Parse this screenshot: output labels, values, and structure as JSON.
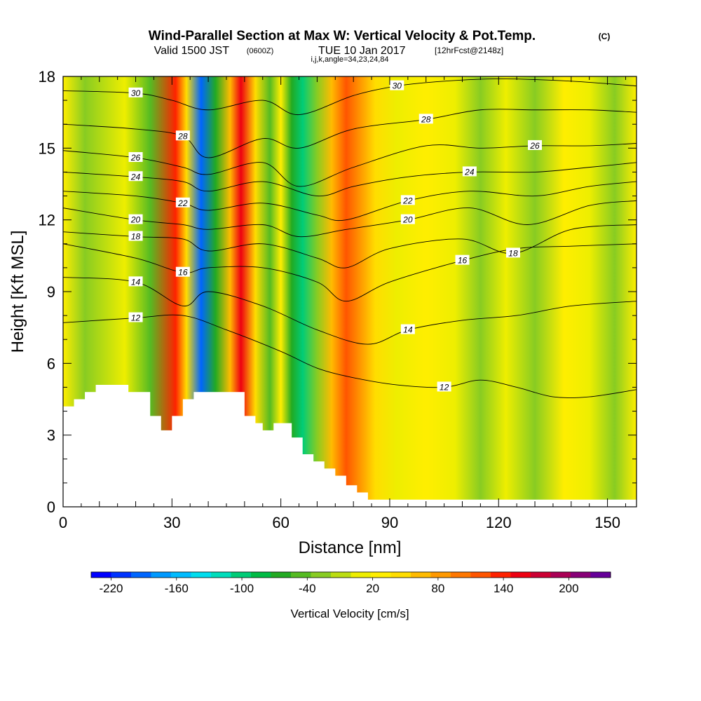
{
  "header": {
    "title_main": "Wind-Parallel Section at Max W: Vertical Velocity & Pot.Temp.",
    "title_mark": "(C)",
    "valid_a": "Valid 1500 JST",
    "valid_b": "(0600Z)",
    "valid_c": "TUE 10 Jan 2017",
    "valid_d": "[12hrFcst@2148z]",
    "indices": "i,j,k,angle=34,23,24,84"
  },
  "chart_data": {
    "type": "heatmap",
    "xlabel": "Distance [nm]",
    "ylabel": "Height [Kft MSL]",
    "xlim": [
      0,
      158
    ],
    "ylim": [
      0,
      18
    ],
    "x_ticks": [
      0,
      30,
      60,
      90,
      120,
      150
    ],
    "y_ticks": [
      0,
      3,
      6,
      9,
      12,
      15,
      18
    ],
    "x_tick_labels": [
      "0",
      "30",
      "60",
      "90",
      "120",
      "150"
    ],
    "y_tick_labels": [
      "0",
      "3",
      "6",
      "9",
      "12",
      "15",
      "18"
    ],
    "colorbar": {
      "label": "Vertical Velocity [cm/s]",
      "range": [
        -240,
        240
      ],
      "step": 20,
      "tick_labels": [
        "-220",
        "-160",
        "-100",
        "-40",
        "20",
        "80",
        "140",
        "200"
      ],
      "colors": [
        "#0000ff",
        "#0033ff",
        "#0066ff",
        "#0099ff",
        "#00bbff",
        "#00ddee",
        "#00ddbb",
        "#00cc77",
        "#00bb44",
        "#22aa22",
        "#55bb22",
        "#88cc22",
        "#bbdd11",
        "#eeee00",
        "#ffee00",
        "#ffdd00",
        "#ffbb00",
        "#ff9900",
        "#ff7700",
        "#ff5500",
        "#ff2200",
        "#ee0011",
        "#cc0033",
        "#aa0055",
        "#880077",
        "#660099"
      ]
    },
    "vertical_velocity_bands": [
      {
        "x": 0,
        "w": 20
      },
      {
        "x": 6,
        "w": -20
      },
      {
        "x": 17,
        "w": 0
      },
      {
        "x": 24,
        "w": -40
      },
      {
        "x": 31,
        "w": 140
      },
      {
        "x": 34,
        "w": 40
      },
      {
        "x": 38,
        "w": -200
      },
      {
        "x": 42,
        "w": -60
      },
      {
        "x": 46,
        "w": 60
      },
      {
        "x": 49,
        "w": 160
      },
      {
        "x": 53,
        "w": 40
      },
      {
        "x": 57,
        "w": -40
      },
      {
        "x": 60,
        "w": 20
      },
      {
        "x": 63,
        "w": -60
      },
      {
        "x": 66,
        "w": -100
      },
      {
        "x": 70,
        "w": -20
      },
      {
        "x": 74,
        "w": 60
      },
      {
        "x": 78,
        "w": 120
      },
      {
        "x": 82,
        "w": 80
      },
      {
        "x": 86,
        "w": 40
      },
      {
        "x": 92,
        "w": 0
      },
      {
        "x": 100,
        "w": 20
      },
      {
        "x": 108,
        "w": 0
      },
      {
        "x": 115,
        "w": -20
      },
      {
        "x": 122,
        "w": 0
      },
      {
        "x": 130,
        "w": -20
      },
      {
        "x": 138,
        "w": 20
      },
      {
        "x": 145,
        "w": 0
      },
      {
        "x": 152,
        "w": -20
      },
      {
        "x": 158,
        "w": 20
      }
    ],
    "terrain_outline_kft": [
      [
        0,
        4.2
      ],
      [
        3,
        4.2
      ],
      [
        3,
        4.5
      ],
      [
        6,
        4.5
      ],
      [
        6,
        4.8
      ],
      [
        9,
        4.8
      ],
      [
        9,
        5.1
      ],
      [
        18,
        5.1
      ],
      [
        18,
        4.8
      ],
      [
        24,
        4.8
      ],
      [
        24,
        3.8
      ],
      [
        27,
        3.8
      ],
      [
        27,
        3.2
      ],
      [
        30,
        3.2
      ],
      [
        30,
        3.8
      ],
      [
        33,
        3.8
      ],
      [
        33,
        4.5
      ],
      [
        36,
        4.5
      ],
      [
        36,
        4.8
      ],
      [
        50,
        4.8
      ],
      [
        50,
        3.8
      ],
      [
        53,
        3.8
      ],
      [
        53,
        3.5
      ],
      [
        55,
        3.5
      ],
      [
        55,
        3.2
      ],
      [
        58,
        3.2
      ],
      [
        58,
        3.5
      ],
      [
        63,
        3.5
      ],
      [
        63,
        2.9
      ],
      [
        66,
        2.9
      ],
      [
        66,
        2.2
      ],
      [
        69,
        2.2
      ],
      [
        69,
        1.9
      ],
      [
        72,
        1.9
      ],
      [
        72,
        1.6
      ],
      [
        75,
        1.6
      ],
      [
        75,
        1.3
      ],
      [
        78,
        1.3
      ],
      [
        78,
        0.9
      ],
      [
        81,
        0.9
      ],
      [
        81,
        0.6
      ],
      [
        84,
        0.6
      ],
      [
        84,
        0.3
      ],
      [
        158,
        0.3
      ]
    ],
    "potential_temperature_contours": [
      {
        "label": "12",
        "points": [
          [
            0,
            7.7
          ],
          [
            20,
            7.9
          ],
          [
            33,
            8.0
          ],
          [
            45,
            7.4
          ],
          [
            60,
            6.5
          ],
          [
            70,
            5.8
          ],
          [
            80,
            5.4
          ],
          [
            92,
            5.1
          ],
          [
            105,
            5.0
          ],
          [
            115,
            5.3
          ],
          [
            125,
            5.0
          ],
          [
            135,
            4.6
          ],
          [
            145,
            4.6
          ],
          [
            158,
            4.9
          ]
        ]
      },
      {
        "label": "14",
        "points": [
          [
            0,
            9.6
          ],
          [
            20,
            9.4
          ],
          [
            33,
            8.4
          ],
          [
            40,
            9.0
          ],
          [
            55,
            8.4
          ],
          [
            70,
            7.4
          ],
          [
            84,
            6.8
          ],
          [
            95,
            7.4
          ],
          [
            110,
            7.8
          ],
          [
            125,
            8.0
          ],
          [
            140,
            8.4
          ],
          [
            158,
            8.6
          ]
        ]
      },
      {
        "label": "16",
        "points": [
          [
            0,
            11.0
          ],
          [
            20,
            10.4
          ],
          [
            33,
            9.8
          ],
          [
            40,
            10.0
          ],
          [
            55,
            10.0
          ],
          [
            70,
            9.4
          ],
          [
            78,
            8.6
          ],
          [
            90,
            9.4
          ],
          [
            110,
            10.3
          ],
          [
            125,
            10.8
          ],
          [
            140,
            10.9
          ],
          [
            158,
            11.0
          ]
        ]
      },
      {
        "label": "18",
        "points": [
          [
            0,
            11.5
          ],
          [
            20,
            11.3
          ],
          [
            33,
            11.2
          ],
          [
            40,
            10.7
          ],
          [
            55,
            11.0
          ],
          [
            70,
            10.4
          ],
          [
            78,
            10.0
          ],
          [
            90,
            10.8
          ],
          [
            110,
            11.2
          ],
          [
            124,
            10.6
          ],
          [
            140,
            11.6
          ],
          [
            158,
            11.8
          ]
        ]
      },
      {
        "label": "20",
        "points": [
          [
            0,
            12.5
          ],
          [
            20,
            12.0
          ],
          [
            33,
            11.8
          ],
          [
            40,
            11.6
          ],
          [
            55,
            11.8
          ],
          [
            65,
            11.3
          ],
          [
            78,
            11.6
          ],
          [
            95,
            12.0
          ],
          [
            112,
            12.5
          ],
          [
            128,
            11.8
          ],
          [
            145,
            12.6
          ],
          [
            158,
            12.8
          ]
        ]
      },
      {
        "label": "22",
        "points": [
          [
            0,
            13.2
          ],
          [
            20,
            13.0
          ],
          [
            33,
            12.7
          ],
          [
            40,
            12.4
          ],
          [
            55,
            12.7
          ],
          [
            70,
            12.2
          ],
          [
            78,
            12.0
          ],
          [
            95,
            12.8
          ],
          [
            112,
            13.2
          ],
          [
            130,
            13.0
          ],
          [
            145,
            13.4
          ],
          [
            158,
            13.6
          ]
        ]
      },
      {
        "label": "24",
        "points": [
          [
            0,
            14.0
          ],
          [
            20,
            13.8
          ],
          [
            33,
            13.6
          ],
          [
            40,
            13.2
          ],
          [
            55,
            13.6
          ],
          [
            70,
            13.0
          ],
          [
            80,
            13.4
          ],
          [
            95,
            13.8
          ],
          [
            112,
            14.0
          ],
          [
            130,
            14.0
          ],
          [
            145,
            14.2
          ],
          [
            158,
            14.4
          ]
        ]
      },
      {
        "label": "26",
        "points": [
          [
            0,
            14.9
          ],
          [
            20,
            14.6
          ],
          [
            33,
            14.2
          ],
          [
            40,
            13.9
          ],
          [
            55,
            14.4
          ],
          [
            65,
            13.4
          ],
          [
            80,
            14.2
          ],
          [
            100,
            15.1
          ],
          [
            115,
            15.0
          ],
          [
            130,
            15.1
          ],
          [
            145,
            15.1
          ],
          [
            158,
            15.2
          ]
        ]
      },
      {
        "label": "28",
        "points": [
          [
            0,
            16.0
          ],
          [
            20,
            15.8
          ],
          [
            33,
            15.5
          ],
          [
            40,
            14.6
          ],
          [
            55,
            15.4
          ],
          [
            65,
            15.0
          ],
          [
            80,
            15.8
          ],
          [
            100,
            16.2
          ],
          [
            115,
            16.6
          ],
          [
            130,
            16.6
          ],
          [
            145,
            16.6
          ],
          [
            158,
            16.5
          ]
        ]
      },
      {
        "label": "30",
        "points": [
          [
            0,
            17.4
          ],
          [
            20,
            17.3
          ],
          [
            30,
            17.0
          ],
          [
            40,
            16.6
          ],
          [
            55,
            17.0
          ],
          [
            65,
            16.4
          ],
          [
            80,
            17.2
          ],
          [
            92,
            17.6
          ],
          [
            105,
            17.8
          ],
          [
            120,
            17.9
          ],
          [
            140,
            17.8
          ],
          [
            158,
            17.6
          ]
        ]
      }
    ]
  }
}
